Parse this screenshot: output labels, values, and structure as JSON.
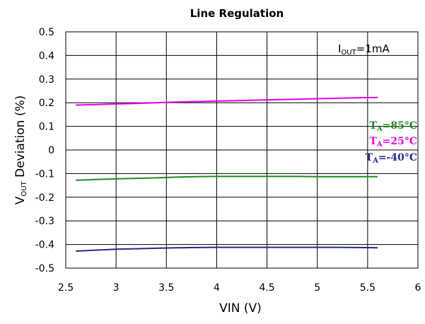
{
  "chart_data": {
    "type": "line",
    "title": "Line Regulation",
    "xlabel": "VIN (V)",
    "ylabel": {
      "main_prefix": "V",
      "sub": "OUT",
      "main_suffix": " Deviation (%)"
    },
    "xlim": [
      2.5,
      6
    ],
    "ylim": [
      -0.5,
      0.5
    ],
    "x_ticks": [
      2.5,
      3,
      3.5,
      4,
      4.5,
      5,
      5.5,
      6
    ],
    "x_tick_labels": [
      "2.5",
      "3",
      "3.5",
      "4",
      "4.5",
      "5",
      "5.5",
      "6"
    ],
    "y_ticks": [
      0.5,
      0.4,
      0.3,
      0.2,
      0.1,
      0,
      -0.1,
      -0.2,
      -0.3,
      -0.4,
      -0.5
    ],
    "y_tick_labels": [
      "0.5",
      "0.4",
      "0.3",
      "0.2",
      "0.1",
      "0",
      "-0.1",
      "-0.2",
      "-0.3",
      "-0.4",
      "-0.5"
    ],
    "grid": true,
    "annotation": {
      "prefix": "I",
      "sub": "OUT",
      "suffix": "=1mA"
    },
    "legend_position": "right",
    "series": [
      {
        "name": "TA=85°C",
        "label_main": "T",
        "label_sub": "A",
        "label_rest": "=85°C",
        "color": "#1f8a1f",
        "x": [
          2.6,
          2.8,
          3.0,
          3.2,
          3.4,
          3.6,
          3.8,
          4.0,
          4.2,
          4.4,
          4.6,
          4.8,
          5.0,
          5.2,
          5.4,
          5.6
        ],
        "y": [
          -0.128,
          -0.125,
          -0.122,
          -0.12,
          -0.118,
          -0.115,
          -0.113,
          -0.112,
          -0.112,
          -0.112,
          -0.112,
          -0.112,
          -0.113,
          -0.113,
          -0.113,
          -0.113
        ]
      },
      {
        "name": "TA=25°C",
        "label_main": "T",
        "label_sub": "A",
        "label_rest": "=25°C",
        "color": "#e600e6",
        "x": [
          2.6,
          2.8,
          3.0,
          3.2,
          3.4,
          3.6,
          3.8,
          4.0,
          4.2,
          4.4,
          4.6,
          4.8,
          5.0,
          5.2,
          5.4,
          5.6
        ],
        "y": [
          0.19,
          0.192,
          0.195,
          0.197,
          0.2,
          0.203,
          0.205,
          0.207,
          0.209,
          0.211,
          0.213,
          0.215,
          0.217,
          0.219,
          0.221,
          0.222
        ]
      },
      {
        "name": "TA=-40°C",
        "label_main": "T",
        "label_sub": "A",
        "label_rest": "=-40°C",
        "color": "#26288c",
        "x": [
          2.6,
          2.8,
          3.0,
          3.2,
          3.4,
          3.6,
          3.8,
          4.0,
          4.2,
          4.4,
          4.6,
          4.8,
          5.0,
          5.2,
          5.4,
          5.6
        ],
        "y": [
          -0.428,
          -0.424,
          -0.42,
          -0.418,
          -0.416,
          -0.414,
          -0.413,
          -0.412,
          -0.412,
          -0.412,
          -0.412,
          -0.412,
          -0.412,
          -0.412,
          -0.413,
          -0.414
        ]
      }
    ]
  }
}
